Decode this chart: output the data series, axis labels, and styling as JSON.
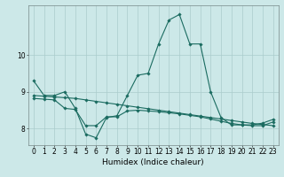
{
  "title": "",
  "xlabel": "Humidex (Indice chaleur)",
  "ylabel": "",
  "bg_color": "#cce8e8",
  "line_color": "#1a6b60",
  "grid_color": "#aacccc",
  "xlim": [
    -0.5,
    23.5
  ],
  "ylim": [
    7.55,
    11.35
  ],
  "yticks": [
    8,
    9,
    10
  ],
  "xticks": [
    0,
    1,
    2,
    3,
    4,
    5,
    6,
    7,
    8,
    9,
    10,
    11,
    12,
    13,
    14,
    15,
    16,
    17,
    18,
    19,
    20,
    21,
    22,
    23
  ],
  "line1_x": [
    0,
    1,
    2,
    3,
    4,
    5,
    6,
    7,
    8,
    9,
    10,
    11,
    12,
    13,
    14,
    15,
    16,
    17,
    18,
    19,
    20,
    21,
    22,
    23
  ],
  "line1_y": [
    9.3,
    8.9,
    8.9,
    9.0,
    8.55,
    7.85,
    7.75,
    8.3,
    8.35,
    8.9,
    9.45,
    9.5,
    10.3,
    10.95,
    11.1,
    10.3,
    10.3,
    9.0,
    8.3,
    8.1,
    8.1,
    8.1,
    8.15,
    8.25
  ],
  "line2_x": [
    0,
    1,
    2,
    3,
    4,
    5,
    6,
    7,
    8,
    9,
    10,
    11,
    12,
    13,
    14,
    15,
    16,
    17,
    18,
    19,
    20,
    21,
    22,
    23
  ],
  "line2_y": [
    8.9,
    8.88,
    8.86,
    8.84,
    8.82,
    8.78,
    8.74,
    8.7,
    8.66,
    8.62,
    8.58,
    8.54,
    8.5,
    8.46,
    8.42,
    8.38,
    8.34,
    8.3,
    8.26,
    8.22,
    8.18,
    8.14,
    8.11,
    8.08
  ],
  "line3_x": [
    0,
    1,
    2,
    3,
    4,
    5,
    6,
    7,
    8,
    9,
    10,
    11,
    12,
    13,
    14,
    15,
    16,
    17,
    18,
    19,
    20,
    21,
    22,
    23
  ],
  "line3_y": [
    8.82,
    8.8,
    8.78,
    8.55,
    8.52,
    8.08,
    8.08,
    8.32,
    8.32,
    8.48,
    8.5,
    8.48,
    8.46,
    8.43,
    8.4,
    8.36,
    8.32,
    8.26,
    8.2,
    8.14,
    8.1,
    8.08,
    8.08,
    8.18
  ],
  "marker": "D",
  "markersize": 1.8,
  "linewidth": 0.8,
  "tick_fontsize": 5.5,
  "xlabel_fontsize": 6.5
}
